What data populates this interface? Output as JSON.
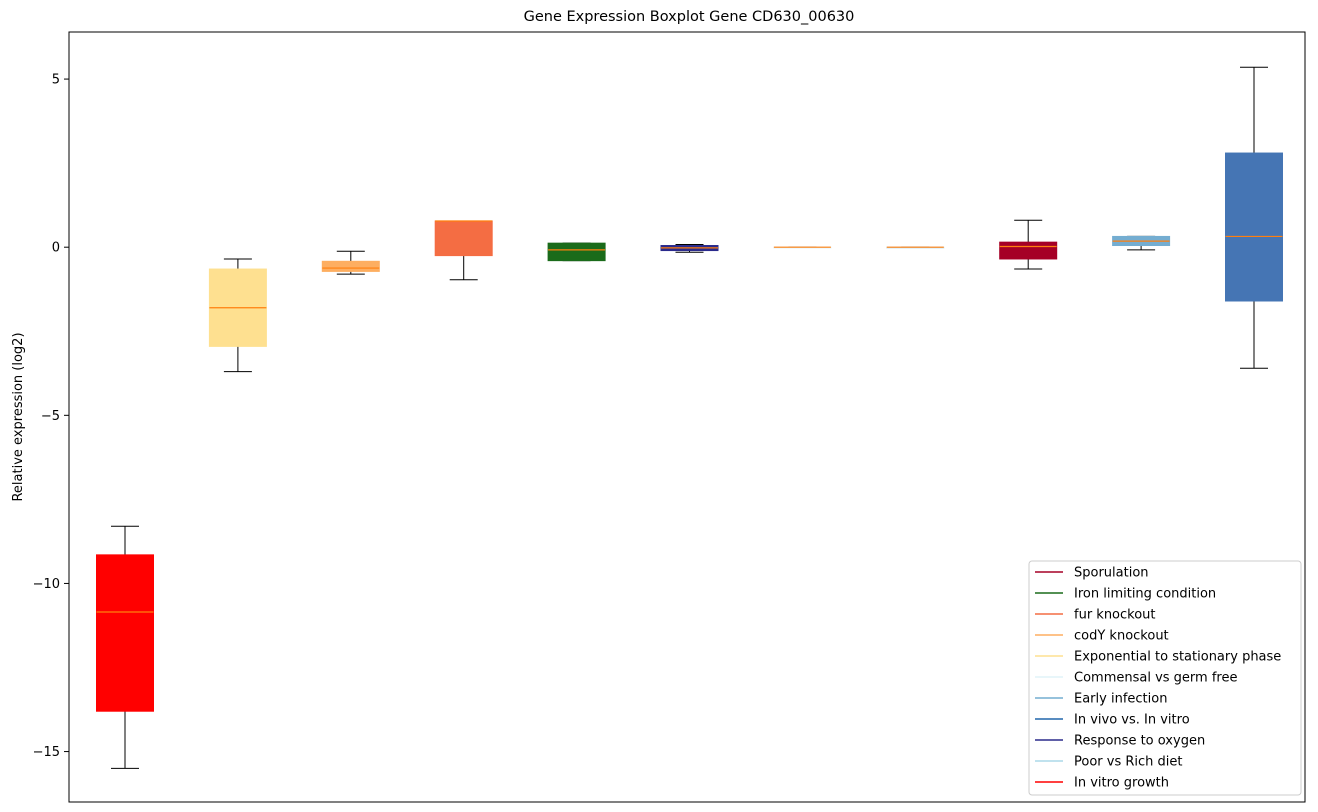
{
  "chart_data": {
    "type": "boxplot",
    "title": "Gene Expression Boxplot Gene CD630_00630",
    "ylabel": "Relative expression (log2)",
    "xlabel": "",
    "ylim": [
      -16.5,
      6.4
    ],
    "yticks": [
      5,
      0,
      -5,
      -10,
      -15
    ],
    "ytick_labels": [
      "5",
      "0",
      "−5",
      "−10",
      "−15"
    ],
    "grid": false,
    "legend_position": "bottom-right",
    "median_color": "#ff7f0e",
    "boxes": [
      {
        "index": 1,
        "color": "#ff0000",
        "whisker_low": -15.5,
        "q1": -13.8,
        "median": -10.85,
        "q3": -9.15,
        "whisker_high": -8.3
      },
      {
        "index": 2,
        "color": "#fee090",
        "whisker_low": -3.7,
        "q1": -2.95,
        "median": -1.8,
        "q3": -0.65,
        "whisker_high": -0.35
      },
      {
        "index": 3,
        "color": "#fdae61",
        "whisker_low": -0.8,
        "q1": -0.72,
        "median": -0.62,
        "q3": -0.42,
        "whisker_high": -0.12
      },
      {
        "index": 4,
        "color": "#f46d43",
        "whisker_low": -0.97,
        "q1": -0.25,
        "median": 0.78,
        "q3": 0.78,
        "whisker_high": 0.78
      },
      {
        "index": 5,
        "color": "#1a6b1a",
        "whisker_low": -0.4,
        "q1": -0.4,
        "median": -0.08,
        "q3": 0.12,
        "whisker_high": 0.12
      },
      {
        "index": 6,
        "color": "#2b2b8c",
        "whisker_low": -0.15,
        "q1": -0.1,
        "median": -0.02,
        "q3": 0.05,
        "whisker_high": 0.08
      },
      {
        "index": 7,
        "color": "#e0f3f8",
        "whisker_low": 0,
        "q1": 0,
        "median": 0,
        "q3": 0,
        "whisker_high": 0
      },
      {
        "index": 8,
        "color": "#c9e6ef",
        "whisker_low": 0,
        "q1": 0,
        "median": 0,
        "q3": 0,
        "whisker_high": 0
      },
      {
        "index": 9,
        "color": "#a50026",
        "whisker_low": -0.65,
        "q1": -0.35,
        "median": 0.02,
        "q3": 0.15,
        "whisker_high": 0.8
      },
      {
        "index": 10,
        "color": "#74add1",
        "whisker_low": -0.08,
        "q1": 0.05,
        "median": 0.18,
        "q3": 0.32,
        "whisker_high": 0.32
      },
      {
        "index": 11,
        "color": "#4575b4",
        "whisker_low": -3.6,
        "q1": -1.6,
        "median": 0.32,
        "q3": 2.8,
        "whisker_high": 5.35
      }
    ],
    "legend": [
      {
        "label": "Sporulation",
        "color": "#a50026"
      },
      {
        "label": "Iron limiting condition",
        "color": "#1a6b1a"
      },
      {
        "label": "fur knockout",
        "color": "#f46d43"
      },
      {
        "label": "codY knockout",
        "color": "#fdae61"
      },
      {
        "label": "Exponential to stationary phase",
        "color": "#fee090"
      },
      {
        "label": "Commensal vs germ free",
        "color": "#e0f3f8"
      },
      {
        "label": "Early infection",
        "color": "#74add1"
      },
      {
        "label": "In vivo vs. In vitro",
        "color": "#2166ac"
      },
      {
        "label": "Response to oxygen",
        "color": "#2b2b8c"
      },
      {
        "label": "Poor vs Rich diet",
        "color": "#abd9e9"
      },
      {
        "label": "In vitro growth",
        "color": "#ff0000"
      }
    ]
  }
}
